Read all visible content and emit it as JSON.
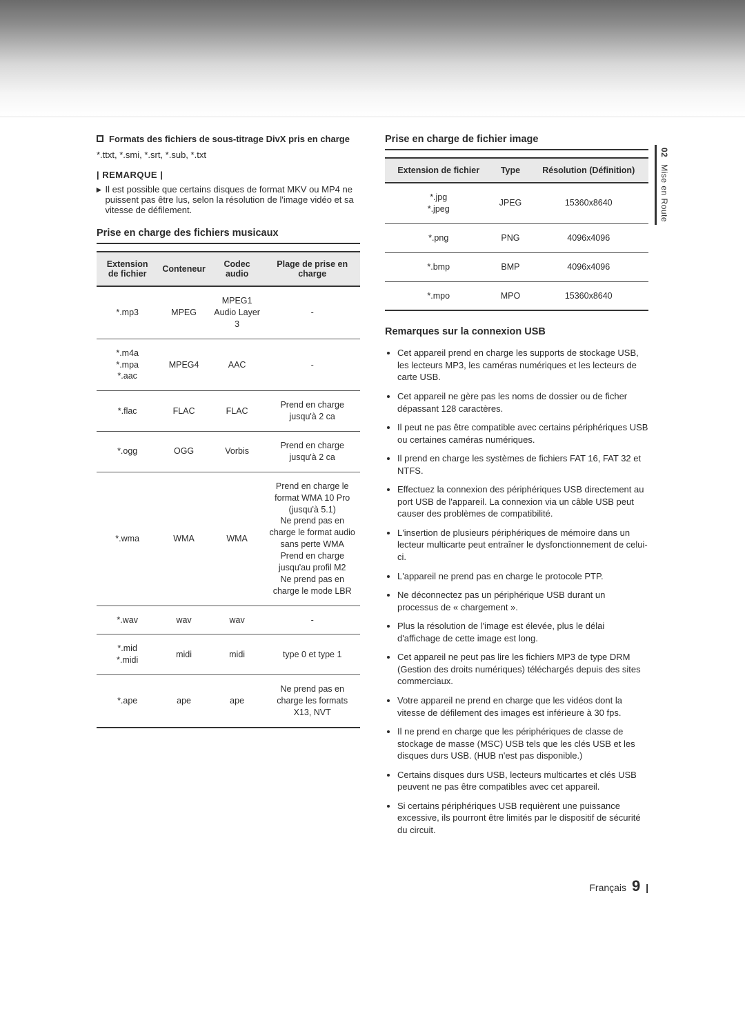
{
  "sideTab": {
    "num": "02",
    "label": "Mise en Route"
  },
  "left": {
    "subtitleHeading": "Formats des fichiers de sous-titrage DivX pris en charge",
    "subtitleFormats": "*.ttxt, *.smi, *.srt, *.sub, *.txt",
    "remarqueLabel": "| REMARQUE |",
    "remarqueText": "Il est possible que certains disques de format MKV ou MP4 ne puissent pas être lus, selon la résolution de l'image vidéo et sa vitesse de défilement.",
    "musicTitle": "Prise en charge des fichiers musicaux",
    "musicTable": {
      "columns": [
        "Extension de fichier",
        "Conteneur",
        "Codec audio",
        "Plage de prise en charge"
      ],
      "rows": [
        [
          "*.mp3",
          "MPEG",
          "MPEG1 Audio Layer 3",
          "-"
        ],
        [
          "*.m4a\n*.mpa\n*.aac",
          "MPEG4",
          "AAC",
          "-"
        ],
        [
          "*.flac",
          "FLAC",
          "FLAC",
          "Prend en charge jusqu'à 2 ca"
        ],
        [
          "*.ogg",
          "OGG",
          "Vorbis",
          "Prend en charge jusqu'à 2 ca"
        ],
        [
          "*.wma",
          "WMA",
          "WMA",
          "Prend en charge le format WMA 10 Pro (jusqu'à 5.1)\nNe prend pas en charge le format audio sans perte WMA\nPrend en charge jusqu'au profil M2\nNe prend pas en charge le mode LBR"
        ],
        [
          "*.wav",
          "wav",
          "wav",
          "-"
        ],
        [
          "*.mid\n*.midi",
          "midi",
          "midi",
          "type 0 et type 1"
        ],
        [
          "*.ape",
          "ape",
          "ape",
          "Ne prend pas en charge les formats X13, NVT"
        ]
      ]
    }
  },
  "right": {
    "imageTitle": "Prise en charge de fichier image",
    "imageTable": {
      "columns": [
        "Extension de fichier",
        "Type",
        "Résolution (Définition)"
      ],
      "rows": [
        [
          "*.jpg\n*.jpeg",
          "JPEG",
          "15360x8640"
        ],
        [
          "*.png",
          "PNG",
          "4096x4096"
        ],
        [
          "*.bmp",
          "BMP",
          "4096x4096"
        ],
        [
          "*.mpo",
          "MPO",
          "15360x8640"
        ]
      ]
    },
    "usbTitle": "Remarques sur la connexion USB",
    "usbNotes": [
      "Cet appareil prend en charge les supports de stockage USB, les lecteurs MP3, les caméras numériques et les lecteurs de carte USB.",
      "Cet appareil ne gère pas les noms de dossier ou de ficher dépassant 128 caractères.",
      "Il peut ne pas être compatible avec certains périphériques USB ou certaines caméras numériques.",
      "Il prend en charge les systèmes de fichiers FAT 16, FAT 32 et NTFS.",
      "Effectuez la connexion des périphériques USB directement au port USB de l'appareil. La connexion via un câble USB peut causer des problèmes de compatibilité.",
      "L'insertion de plusieurs périphériques de mémoire dans un lecteur multicarte peut entraîner le dysfonctionnement de celui-ci.",
      "L'appareil ne prend pas en charge le protocole PTP.",
      "Ne déconnectez pas un périphérique USB durant un processus de « chargement ».",
      "Plus la résolution de l'image est élevée, plus le délai d'affichage de cette image est long.",
      "Cet appareil ne peut pas lire les fichiers MP3 de type DRM (Gestion des droits numériques) téléchargés depuis des sites commerciaux.",
      "Votre appareil ne prend en charge que les vidéos dont la vitesse de défilement des images est inférieure à 30 fps.",
      "Il ne prend en charge que les périphériques de classe de stockage de masse (MSC) USB tels que les clés USB et les disques durs USB. (HUB n'est pas disponible.)",
      "Certains disques durs USB, lecteurs multicartes et clés USB peuvent ne pas être compatibles avec cet appareil.",
      "Si certains périphériques USB requièrent une puissance excessive, ils pourront être limités par le dispositif de sécurité du circuit."
    ]
  },
  "footer": {
    "lang": "Français",
    "page": "9"
  }
}
